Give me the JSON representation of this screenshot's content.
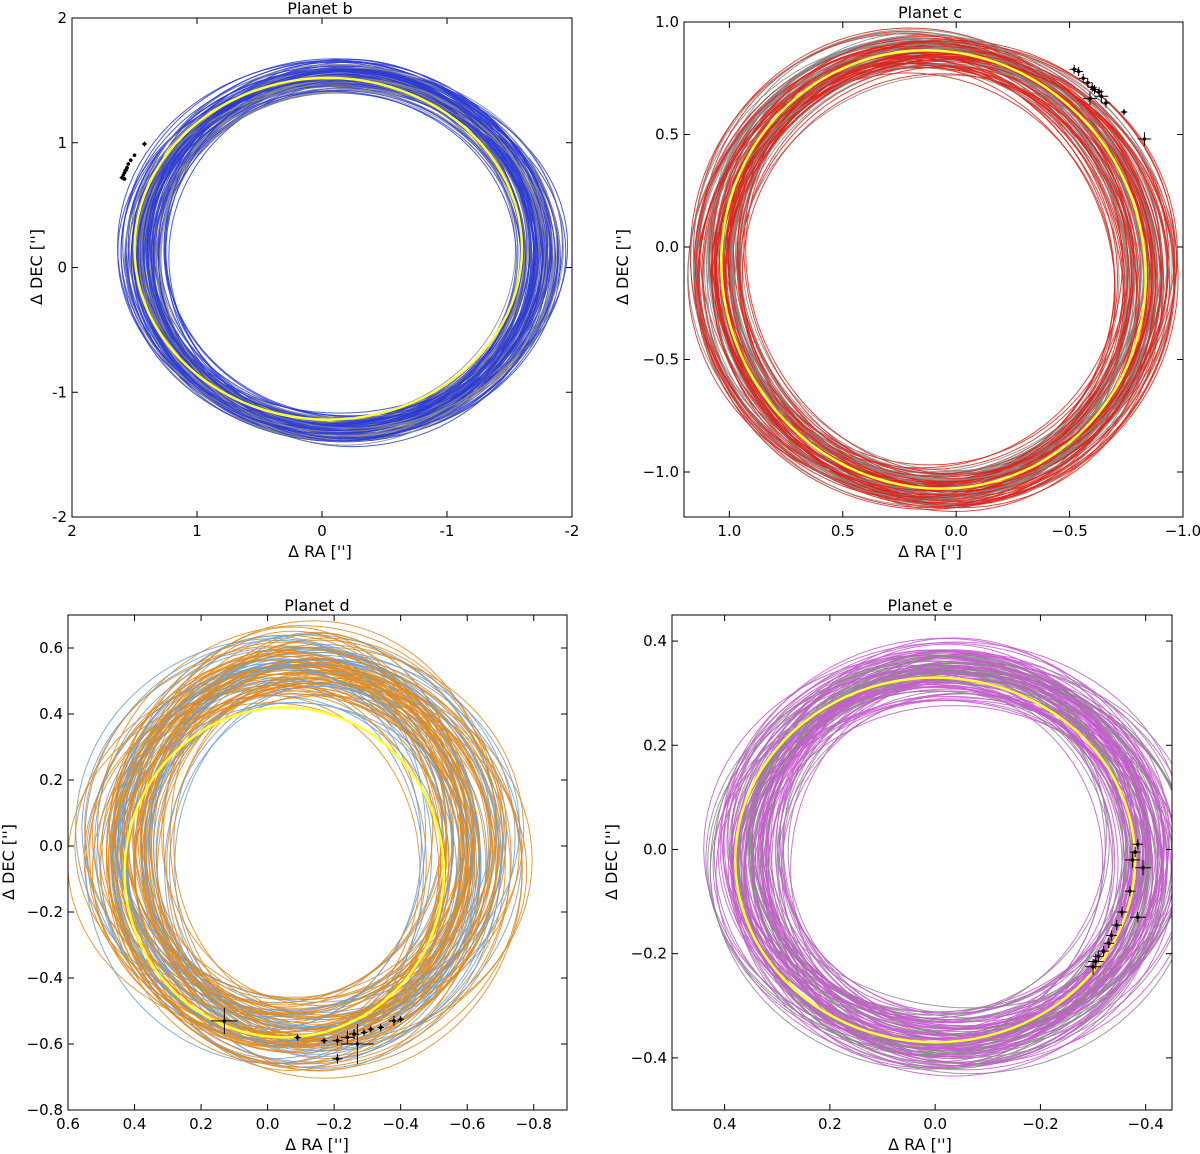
{
  "chart_data": [
    {
      "type": "line",
      "title": "Planet b",
      "xlabel": "Δ RA  ['']",
      "ylabel": "Δ DEC  ['']",
      "xlim": [
        2,
        -2
      ],
      "ylim": [
        -2,
        2
      ],
      "xticks": [
        "2",
        "1",
        "0",
        "-1",
        "-2"
      ],
      "xtick_values": [
        2,
        1,
        0,
        -1,
        -2
      ],
      "yticks": [
        "-2",
        "-1",
        "0",
        "1",
        "2"
      ],
      "ytick_values": [
        -2,
        -1,
        0,
        1,
        2
      ],
      "grid": false,
      "colors": {
        "orbit_family": "#2b3bd6",
        "orbit_alt": "#8a8a8a",
        "best_fit": "#ffff33",
        "data_points": "#000000"
      },
      "best_fit_orbit": {
        "ra_center": -0.05,
        "dec_center": 0.15,
        "ra_semi": 1.55,
        "dec_semi": 1.37,
        "tilt_deg": 0
      },
      "orbit_family": {
        "ra_center_range": [
          -0.25,
          -0.05
        ],
        "dec_center_range": [
          0.05,
          0.18
        ],
        "ra_semi_range": [
          1.45,
          1.72
        ],
        "dec_semi_range": [
          1.33,
          1.5
        ],
        "anchor_ra": 1.42,
        "anchor_dec": 0.98
      },
      "astrometry": [
        {
          "ra": 1.42,
          "dec": 0.99,
          "era": 0.02,
          "edec": 0.02
        },
        {
          "ra": 1.5,
          "dec": 0.9,
          "era": 0.01,
          "edec": 0.01
        },
        {
          "ra": 1.53,
          "dec": 0.86,
          "era": 0.015,
          "edec": 0.015
        },
        {
          "ra": 1.55,
          "dec": 0.83,
          "era": 0.01,
          "edec": 0.01
        },
        {
          "ra": 1.56,
          "dec": 0.8,
          "era": 0.015,
          "edec": 0.015
        },
        {
          "ra": 1.57,
          "dec": 0.78,
          "era": 0.02,
          "edec": 0.02
        },
        {
          "ra": 1.58,
          "dec": 0.76,
          "era": 0.015,
          "edec": 0.015
        },
        {
          "ra": 1.59,
          "dec": 0.74,
          "era": 0.01,
          "edec": 0.01
        },
        {
          "ra": 1.6,
          "dec": 0.72,
          "era": 0.02,
          "edec": 0.02
        },
        {
          "ra": 1.58,
          "dec": 0.71,
          "era": 0.015,
          "edec": 0.015
        }
      ]
    },
    {
      "type": "line",
      "title": "Planet c",
      "xlabel": "Δ RA  ['']",
      "ylabel": "Δ DEC  ['']",
      "xlim": [
        1.2,
        -1.0
      ],
      "ylim": [
        -1.2,
        1.0
      ],
      "xticks": [
        "1.0",
        "0.5",
        "0.0",
        "−0.5",
        "−1.0"
      ],
      "xtick_values": [
        1.0,
        0.5,
        0.0,
        -0.5,
        -1.0
      ],
      "yticks": [
        "−1.0",
        "−0.5",
        "0.0",
        "0.5",
        "1.0"
      ],
      "ytick_values": [
        -1.0,
        -0.5,
        0.0,
        0.5,
        1.0
      ],
      "grid": false,
      "colors": {
        "orbit_family": "#d9261c",
        "orbit_alt": "#8a8a8a",
        "best_fit": "#ffff33",
        "data_points": "#000000"
      },
      "best_fit_orbit": {
        "ra_center": 0.1,
        "dec_center": -0.1,
        "ra_semi": 0.93,
        "dec_semi": 0.98,
        "tilt_deg": -20
      },
      "orbit_family": {
        "ra_center_range": [
          0.02,
          0.2
        ],
        "dec_center_range": [
          -0.16,
          -0.04
        ],
        "ra_semi_range": [
          0.86,
          1.02
        ],
        "dec_semi_range": [
          0.92,
          1.04
        ],
        "anchor_ra": -0.6,
        "anchor_dec": 0.7
      },
      "astrometry": [
        {
          "ra": -0.52,
          "dec": 0.79,
          "era": 0.02,
          "edec": 0.02
        },
        {
          "ra": -0.54,
          "dec": 0.78,
          "era": 0.02,
          "edec": 0.02
        },
        {
          "ra": -0.56,
          "dec": 0.75,
          "era": 0.02,
          "edec": 0.02
        },
        {
          "ra": -0.58,
          "dec": 0.73,
          "era": 0.02,
          "edec": 0.02
        },
        {
          "ra": -0.6,
          "dec": 0.71,
          "era": 0.02,
          "edec": 0.02
        },
        {
          "ra": -0.61,
          "dec": 0.7,
          "era": 0.02,
          "edec": 0.02
        },
        {
          "ra": -0.63,
          "dec": 0.69,
          "era": 0.02,
          "edec": 0.02
        },
        {
          "ra": -0.64,
          "dec": 0.67,
          "era": 0.03,
          "edec": 0.03
        },
        {
          "ra": -0.59,
          "dec": 0.66,
          "era": 0.03,
          "edec": 0.03
        },
        {
          "ra": -0.66,
          "dec": 0.64,
          "era": 0.02,
          "edec": 0.02
        },
        {
          "ra": -0.74,
          "dec": 0.6,
          "era": 0.015,
          "edec": 0.015
        },
        {
          "ra": -0.83,
          "dec": 0.48,
          "era": 0.03,
          "edec": 0.03
        }
      ]
    },
    {
      "type": "line",
      "title": "Planet d",
      "xlabel": "Δ RA  ['']",
      "ylabel": "Δ DEC  ['']",
      "xlim": [
        0.6,
        -0.9
      ],
      "ylim": [
        -0.8,
        0.7
      ],
      "xticks": [
        "0.6",
        "0.4",
        "0.2",
        "0.0",
        "−0.2",
        "−0.4",
        "−0.6",
        "−0.8"
      ],
      "xtick_values": [
        0.6,
        0.4,
        0.2,
        0.0,
        -0.2,
        -0.4,
        -0.6,
        -0.8
      ],
      "yticks": [
        "−0.8",
        "−0.6",
        "−0.4",
        "−0.2",
        "0.0",
        "0.2",
        "0.4",
        "0.6"
      ],
      "ytick_values": [
        -0.8,
        -0.6,
        -0.4,
        -0.2,
        0.0,
        0.2,
        0.4,
        0.6
      ],
      "grid": false,
      "colors": {
        "orbit_family": "#e08a1e",
        "orbit_alt": "#6f9fd0",
        "best_fit": "#ffff33",
        "data_points": "#000000"
      },
      "best_fit_orbit": {
        "ra_center": -0.05,
        "dec_center": -0.08,
        "ra_semi": 0.48,
        "dec_semi": 0.5,
        "tilt_deg": 0
      },
      "orbit_family": {
        "ra_center_range": [
          -0.18,
          0.0
        ],
        "dec_center_range": [
          -0.08,
          0.06
        ],
        "ra_semi_range": [
          0.44,
          0.62
        ],
        "dec_semi_range": [
          0.5,
          0.63
        ],
        "anchor_ra": -0.25,
        "anchor_dec": -0.58
      },
      "astrometry": [
        {
          "ra": 0.13,
          "dec": -0.53,
          "era": 0.04,
          "edec": 0.04
        },
        {
          "ra": -0.09,
          "dec": -0.58,
          "era": 0.01,
          "edec": 0.01
        },
        {
          "ra": -0.17,
          "dec": -0.59,
          "era": 0.01,
          "edec": 0.01
        },
        {
          "ra": -0.21,
          "dec": -0.59,
          "era": 0.015,
          "edec": 0.015
        },
        {
          "ra": -0.21,
          "dec": -0.645,
          "era": 0.015,
          "edec": 0.015
        },
        {
          "ra": -0.24,
          "dec": -0.58,
          "era": 0.02,
          "edec": 0.02
        },
        {
          "ra": -0.26,
          "dec": -0.57,
          "era": 0.015,
          "edec": 0.015
        },
        {
          "ra": -0.27,
          "dec": -0.6,
          "era": 0.05,
          "edec": 0.06
        },
        {
          "ra": -0.29,
          "dec": -0.565,
          "era": 0.01,
          "edec": 0.01
        },
        {
          "ra": -0.31,
          "dec": -0.555,
          "era": 0.01,
          "edec": 0.01
        },
        {
          "ra": -0.34,
          "dec": -0.55,
          "era": 0.01,
          "edec": 0.01
        },
        {
          "ra": -0.38,
          "dec": -0.53,
          "era": 0.015,
          "edec": 0.015
        },
        {
          "ra": -0.4,
          "dec": -0.525,
          "era": 0.01,
          "edec": 0.01
        }
      ]
    },
    {
      "type": "line",
      "title": "Planet e",
      "xlabel": "Δ RA  ['']",
      "ylabel": "Δ DEC  ['']",
      "xlim": [
        0.5,
        -0.45
      ],
      "ylim": [
        -0.5,
        0.45
      ],
      "xticks": [
        "0.4",
        "0.2",
        "0.0",
        "−0.2",
        "−0.4"
      ],
      "xtick_values": [
        0.4,
        0.2,
        0.0,
        -0.2,
        -0.4
      ],
      "yticks": [
        "−0.4",
        "−0.2",
        "0.0",
        "0.2",
        "0.4"
      ],
      "ytick_values": [
        -0.4,
        -0.2,
        0.0,
        0.2,
        0.4
      ],
      "grid": false,
      "colors": {
        "orbit_family": "#c85ad0",
        "orbit_alt": "#8a8a8a",
        "best_fit": "#ffff33",
        "data_points": "#000000"
      },
      "best_fit_orbit": {
        "ra_center": 0.0,
        "dec_center": -0.02,
        "ra_semi": 0.38,
        "dec_semi": 0.35,
        "tilt_deg": 0
      },
      "orbit_family": {
        "ra_center_range": [
          -0.07,
          0.02
        ],
        "dec_center_range": [
          -0.05,
          0.03
        ],
        "ra_semi_range": [
          0.33,
          0.43
        ],
        "dec_semi_range": [
          0.32,
          0.39
        ],
        "anchor_ra": -0.38,
        "anchor_dec": -0.05
      },
      "astrometry": [
        {
          "ra": -0.385,
          "dec": 0.01,
          "era": 0.01,
          "edec": 0.01
        },
        {
          "ra": -0.38,
          "dec": -0.005,
          "era": 0.01,
          "edec": 0.01
        },
        {
          "ra": -0.375,
          "dec": -0.02,
          "era": 0.015,
          "edec": 0.015
        },
        {
          "ra": -0.395,
          "dec": -0.035,
          "era": 0.015,
          "edec": 0.015
        },
        {
          "ra": -0.37,
          "dec": -0.08,
          "era": 0.01,
          "edec": 0.01
        },
        {
          "ra": -0.385,
          "dec": -0.13,
          "era": 0.015,
          "edec": 0.01
        },
        {
          "ra": -0.355,
          "dec": -0.12,
          "era": 0.01,
          "edec": 0.01
        },
        {
          "ra": -0.345,
          "dec": -0.145,
          "era": 0.01,
          "edec": 0.01
        },
        {
          "ra": -0.335,
          "dec": -0.165,
          "era": 0.01,
          "edec": 0.01
        },
        {
          "ra": -0.33,
          "dec": -0.18,
          "era": 0.01,
          "edec": 0.01
        },
        {
          "ra": -0.32,
          "dec": -0.195,
          "era": 0.01,
          "edec": 0.01
        },
        {
          "ra": -0.31,
          "dec": -0.205,
          "era": 0.01,
          "edec": 0.01
        },
        {
          "ra": -0.305,
          "dec": -0.215,
          "era": 0.015,
          "edec": 0.015
        },
        {
          "ra": -0.3,
          "dec": -0.225,
          "era": 0.015,
          "edec": 0.015
        }
      ]
    }
  ]
}
